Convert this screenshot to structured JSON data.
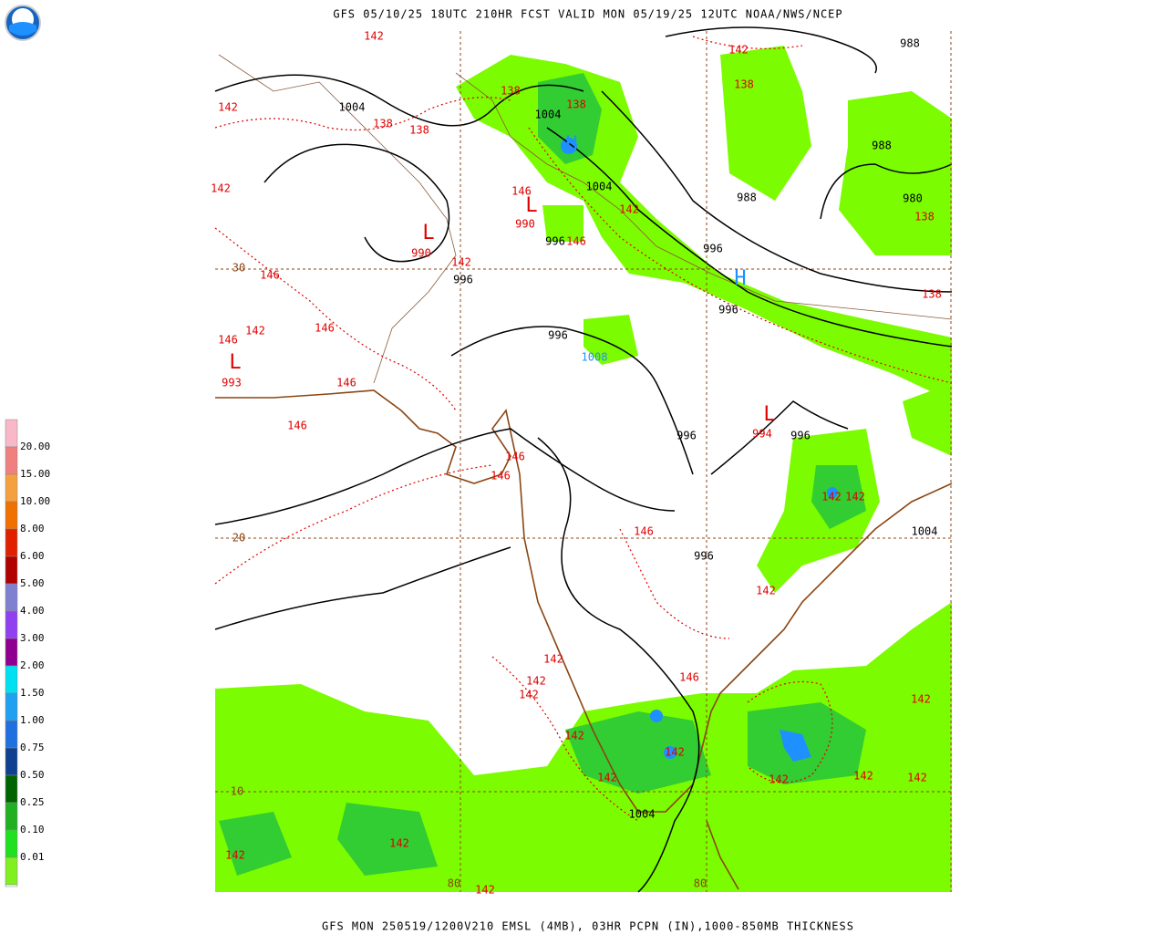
{
  "header": {
    "title": "GFS 05/10/25 18UTC 210HR FCST VALID MON 05/19/25 12UTC NOAA/NWS/NCEP"
  },
  "footer": {
    "text": "GFS MON 250519/1200V210 EMSL (4MB), 03HR PCPN (IN),1000-850MB THICKNESS"
  },
  "legend": {
    "labels": [
      "20.00",
      "15.00",
      "10.00",
      "8.00",
      "6.00",
      "5.00",
      "4.00",
      "3.00",
      "2.00",
      "1.50",
      "1.00",
      "0.75",
      "0.50",
      "0.25",
      "0.10",
      "0.01"
    ],
    "colors": [
      "#f8b8c8",
      "#f08080",
      "#f4a040",
      "#f07000",
      "#e02000",
      "#b00000",
      "#8080d0",
      "#9040f0",
      "#900090",
      "#00e0f0",
      "#20a0f0",
      "#2070e0",
      "#104090",
      "#006400",
      "#20b020",
      "#20e020",
      "#80f020"
    ]
  },
  "map": {
    "labels": [
      "142",
      "1004",
      "138",
      "138",
      "142",
      "142",
      "138",
      "1004",
      "138",
      "146",
      "L",
      "990",
      "1004",
      "142",
      "996",
      "146",
      "L",
      "990",
      "142",
      "996",
      "30",
      "146",
      "142",
      "146",
      "146",
      "L",
      "993",
      "146",
      "996",
      "1008",
      "146",
      "146",
      "146",
      "996",
      "L",
      "994",
      "996",
      "142",
      "142",
      "1004",
      "20",
      "146",
      "996",
      "142",
      "142",
      "146",
      "142",
      "142",
      "142",
      "142",
      "142",
      "142",
      "142",
      "142",
      "142",
      "10",
      "1004",
      "142",
      "142",
      "80",
      "142",
      "80",
      "988",
      "142",
      "138",
      "988",
      "988",
      "980",
      "138",
      "996",
      "996",
      "138",
      "H",
      "H"
    ]
  }
}
